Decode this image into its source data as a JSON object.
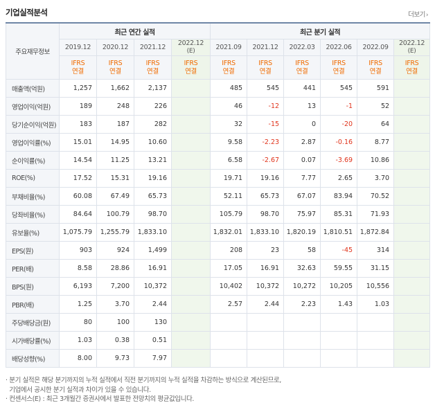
{
  "header": {
    "title": "기업실적분석",
    "more": "더보기"
  },
  "table": {
    "rowhead_label": "주요재무정보",
    "groups": {
      "annual": "최근 연간 실적",
      "quarter": "최근 분기 실적"
    },
    "periods": [
      "2019.12",
      "2020.12",
      "2021.12",
      "2022.12(E)",
      "2021.09",
      "2021.12",
      "2022.03",
      "2022.06",
      "2022.09",
      "2022.12(E)"
    ],
    "ifrs": "IFRS",
    "basis": "연결",
    "rows": [
      {
        "label": "매출액(억원)",
        "values": [
          "1,257",
          "1,662",
          "2,137",
          "",
          "485",
          "545",
          "441",
          "545",
          "591",
          ""
        ]
      },
      {
        "label": "영업이익(억원)",
        "values": [
          "189",
          "248",
          "226",
          "",
          "46",
          "-12",
          "13",
          "-1",
          "52",
          ""
        ]
      },
      {
        "label": "당기순이익(억원)",
        "values": [
          "183",
          "187",
          "282",
          "",
          "32",
          "-15",
          "0",
          "-20",
          "64",
          ""
        ]
      },
      {
        "label": "영업이익률(%)",
        "values": [
          "15.01",
          "14.95",
          "10.60",
          "",
          "9.58",
          "-2.23",
          "2.87",
          "-0.16",
          "8.77",
          ""
        ]
      },
      {
        "label": "순이익률(%)",
        "values": [
          "14.54",
          "11.25",
          "13.21",
          "",
          "6.58",
          "-2.67",
          "0.07",
          "-3.69",
          "10.86",
          ""
        ]
      },
      {
        "label": "ROE(%)",
        "values": [
          "17.52",
          "15.31",
          "19.16",
          "",
          "19.71",
          "19.16",
          "7.77",
          "2.65",
          "3.70",
          ""
        ]
      },
      {
        "label": "부채비율(%)",
        "values": [
          "60.08",
          "67.49",
          "65.73",
          "",
          "52.11",
          "65.73",
          "67.07",
          "83.94",
          "70.52",
          ""
        ]
      },
      {
        "label": "당좌비율(%)",
        "values": [
          "84.64",
          "100.79",
          "98.70",
          "",
          "105.79",
          "98.70",
          "75.97",
          "85.31",
          "71.93",
          ""
        ]
      },
      {
        "label": "유보율(%)",
        "values": [
          "1,075.79",
          "1,255.79",
          "1,833.10",
          "",
          "1,832.01",
          "1,833.10",
          "1,820.19",
          "1,810.51",
          "1,872.84",
          ""
        ]
      },
      {
        "label": "EPS(원)",
        "values": [
          "903",
          "924",
          "1,499",
          "",
          "208",
          "23",
          "58",
          "-45",
          "314",
          ""
        ]
      },
      {
        "label": "PER(배)",
        "values": [
          "8.58",
          "28.86",
          "16.91",
          "",
          "17.05",
          "16.91",
          "32.63",
          "59.55",
          "31.15",
          ""
        ]
      },
      {
        "label": "BPS(원)",
        "values": [
          "6,193",
          "7,200",
          "10,372",
          "",
          "10,402",
          "10,372",
          "10,272",
          "10,205",
          "10,556",
          ""
        ]
      },
      {
        "label": "PBR(배)",
        "values": [
          "1.25",
          "3.70",
          "2.44",
          "",
          "2.57",
          "2.44",
          "2.23",
          "1.43",
          "1.03",
          ""
        ]
      },
      {
        "label": "주당배당금(원)",
        "values": [
          "80",
          "100",
          "130",
          "",
          "",
          "",
          "",
          "",
          "",
          ""
        ]
      },
      {
        "label": "시가배당률(%)",
        "values": [
          "1.03",
          "0.38",
          "0.51",
          "",
          "",
          "",
          "",
          "",
          "",
          ""
        ]
      },
      {
        "label": "배당성향(%)",
        "values": [
          "8.00",
          "9.73",
          "7.97",
          "",
          "",
          "",
          "",
          "",
          "",
          ""
        ]
      }
    ]
  },
  "notes": [
    "분기 실적은 해당 분기까지의 누적 실적에서 직전 분기까지의 누적 실적을 차감하는 방식으로 계산된므로,",
    "기업에서 공시한 분기 실적과 차이가 있을 수 있습니다.",
    "컨센서스(E) : 최근 3개월간 증권사에서 발표한 전망치의 평균값입니다."
  ],
  "colors": {
    "accent_orange": "#f06b00",
    "negative_red": "#e0331b",
    "estimate_bg": "#f0f7ec",
    "header_bg": "#f4f6f9",
    "top_border": "#6f86a6"
  }
}
